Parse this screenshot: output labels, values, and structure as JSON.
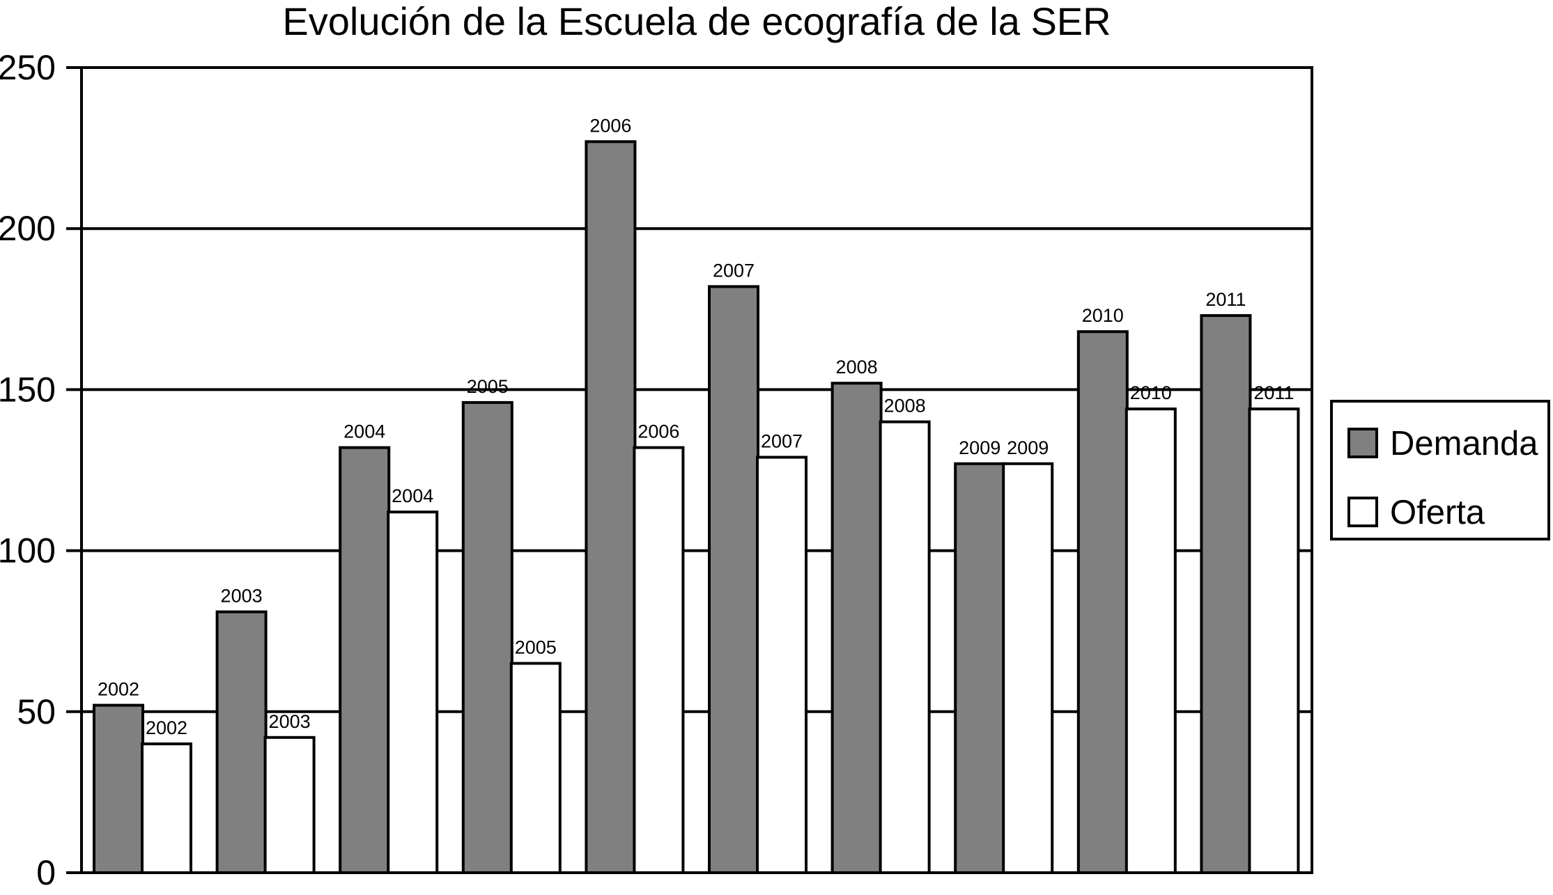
{
  "chart_data": {
    "type": "bar",
    "title": "Evolución de la Escuela de ecografía de la SER",
    "xlabel": "",
    "ylabel": "",
    "categories": [
      "2002",
      "2003",
      "2004",
      "2005",
      "2006",
      "2007",
      "2008",
      "2009",
      "2010",
      "2011"
    ],
    "series": [
      {
        "name": "Demanda",
        "color": "#808080",
        "values": [
          52,
          81,
          132,
          146,
          227,
          182,
          152,
          127,
          168,
          173
        ],
        "data_labels": [
          "2002",
          "2003",
          "2004",
          "2005",
          "2006",
          "2007",
          "2008",
          "2009",
          "2010",
          "2011"
        ]
      },
      {
        "name": "Oferta",
        "color": "#ffffff",
        "values": [
          40,
          42,
          112,
          65,
          132,
          129,
          140,
          127,
          144,
          144
        ],
        "data_labels": [
          "2002",
          "2003",
          "2004",
          "2005",
          "2006",
          "2007",
          "2008",
          "2009",
          "2010",
          "2011"
        ]
      }
    ],
    "ylim": [
      0,
      250
    ],
    "yticks": [
      0,
      50,
      100,
      150,
      200,
      250
    ],
    "ytick_labels": [
      "0",
      "50",
      "100",
      "150",
      "200",
      "250"
    ],
    "grid": true,
    "legend_position": "right"
  }
}
